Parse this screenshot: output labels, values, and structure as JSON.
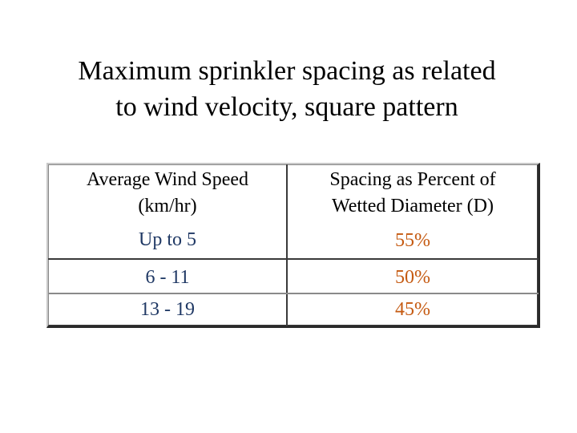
{
  "title": {
    "line1": "Maximum sprinkler spacing as related",
    "line2": "to wind velocity, square pattern"
  },
  "table": {
    "headers": {
      "col1_line1": "Average Wind Speed",
      "col1_line2": "(km/hr)",
      "col2_line1": "Spacing as Percent of",
      "col2_line2": "Wetted Diameter (D)"
    },
    "rows": [
      {
        "wind_speed": "Up to 5",
        "spacing": "55%"
      },
      {
        "wind_speed": "6 - 11",
        "spacing": "50%"
      },
      {
        "wind_speed": "13 - 19",
        "spacing": "45%"
      }
    ]
  },
  "colors": {
    "title_text": "#000000",
    "header_text": "#000000",
    "wind_speed_text": "#1f3864",
    "spacing_text": "#c55a11"
  }
}
